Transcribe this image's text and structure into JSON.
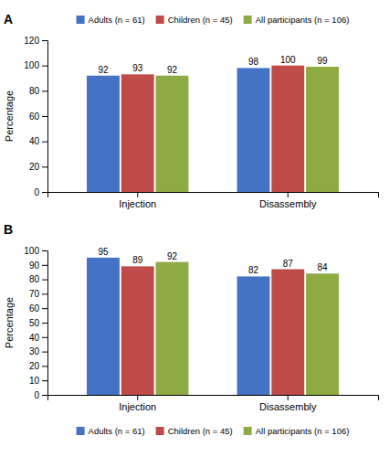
{
  "chart_data": [
    {
      "type": "bar",
      "title": "A",
      "categories": [
        "Injection",
        "Disassembly"
      ],
      "series": [
        {
          "name": "Adults (n = 61)",
          "color": "#4472C4",
          "values": [
            92,
            98
          ]
        },
        {
          "name": "Children (n = 45)",
          "color": "#BE4B48",
          "values": [
            93,
            100
          ]
        },
        {
          "name": "All participants (n = 106)",
          "color": "#8EAA42",
          "values": [
            92,
            99
          ]
        }
      ],
      "ylabel": "Percentage",
      "ylim": [
        0,
        120
      ],
      "yticks": [
        0,
        20,
        40,
        60,
        80,
        100,
        120
      ],
      "data_labels": true,
      "legend": "top"
    },
    {
      "type": "bar",
      "title": "B",
      "categories": [
        "Injection",
        "Disassembly"
      ],
      "series": [
        {
          "name": "Adults (n = 61)",
          "color": "#4472C4",
          "values": [
            95,
            82
          ]
        },
        {
          "name": "Children (n = 45)",
          "color": "#BE4B48",
          "values": [
            89,
            87
          ]
        },
        {
          "name": "All participants (n = 106)",
          "color": "#8EAA42",
          "values": [
            92,
            84
          ]
        }
      ],
      "ylabel": "Percentage",
      "ylim": [
        0,
        100
      ],
      "yticks": [
        0,
        10,
        20,
        30,
        40,
        50,
        60,
        70,
        80,
        90,
        100
      ],
      "data_labels": true,
      "legend": "bottom"
    }
  ]
}
